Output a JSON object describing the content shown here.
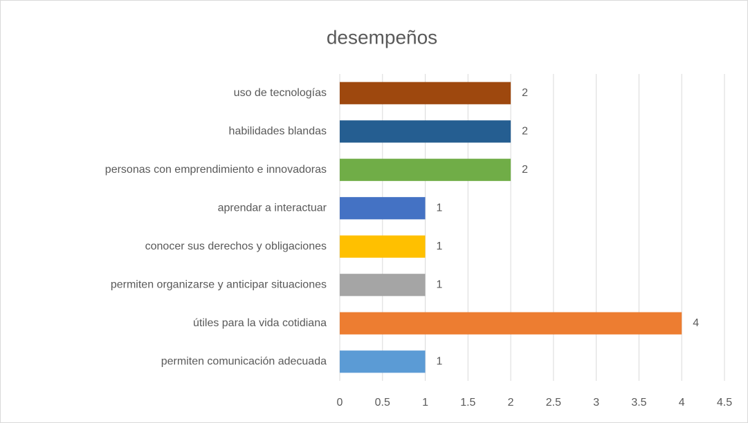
{
  "chart_data": {
    "type": "bar",
    "orientation": "horizontal",
    "title": "desempeños",
    "categories": [
      "permiten comunicación adecuada",
      "útiles para la vida cotidiana",
      "permiten organizarse y anticipar situaciones",
      "conocer sus derechos y obligaciones",
      "aprendar a interactuar",
      "personas con emprendimiento e innovadoras",
      "habilidades blandas",
      "uso de tecnologías"
    ],
    "values": [
      1,
      4,
      1,
      1,
      1,
      2,
      2,
      2
    ],
    "colors": [
      "#5b9bd5",
      "#ed7d31",
      "#a5a5a5",
      "#ffc000",
      "#4472c4",
      "#70ad47",
      "#255e91",
      "#9e480e"
    ],
    "xlim": [
      0,
      4.5
    ],
    "xticks": [
      0,
      0.5,
      1,
      1.5,
      2,
      2.5,
      3,
      3.5,
      4,
      4.5
    ],
    "grid": true
  }
}
